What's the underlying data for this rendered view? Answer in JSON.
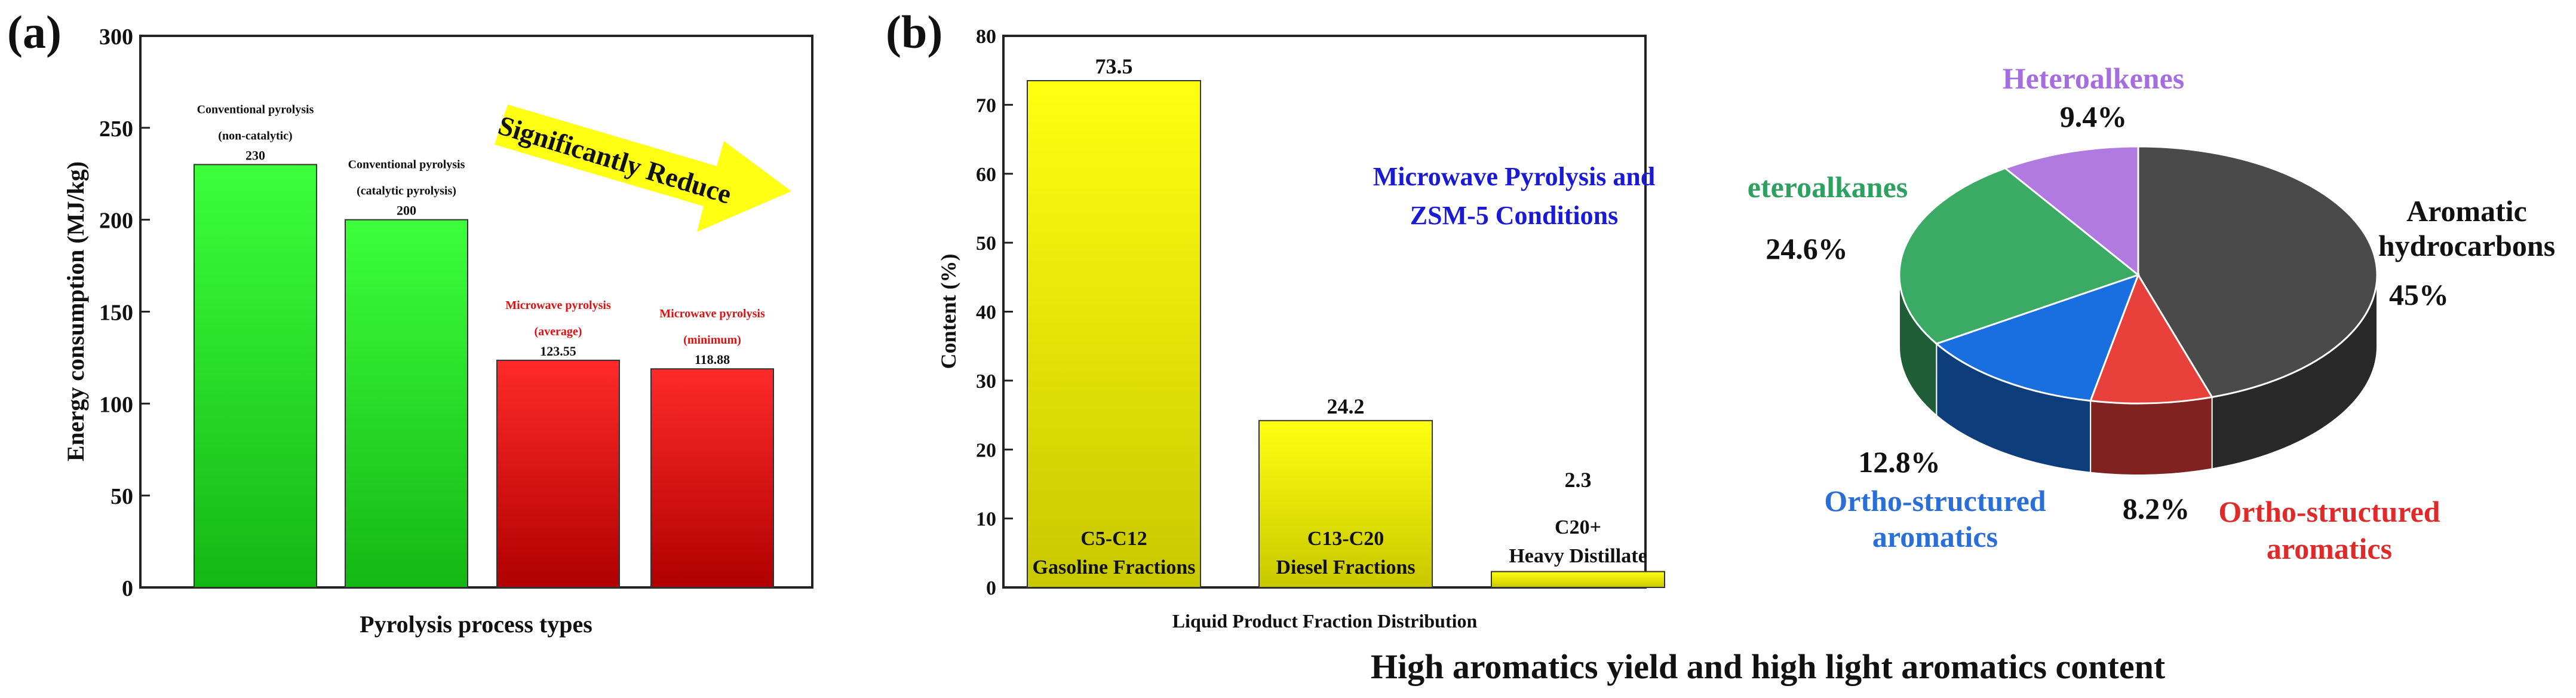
{
  "panels": {
    "a_label": "(a)",
    "b_label": "(b)"
  },
  "colors": {
    "green_bar": "#2ee82e",
    "red_bar": "#ee1111",
    "yellow_bar": "#f4f400",
    "arrow": "#ffff00",
    "title_blue": "#1a1ad4"
  },
  "annotations": {
    "arrow_text": "Significantly Reduce",
    "caption": "High aromatics yield and high light aromatics content"
  },
  "chart_data": [
    {
      "type": "bar",
      "title": "",
      "ylabel": "Energy consumption (MJ/kg)",
      "xlabel": "Pyrolysis process types",
      "ylim": [
        0,
        300
      ],
      "yticks": [
        "0",
        "50",
        "100",
        "150",
        "200",
        "250",
        "300"
      ],
      "bars": [
        {
          "value": 230,
          "value_label": "230",
          "label_lines": [
            "Conventional pyrolysis",
            "(non-catalytic)"
          ],
          "color": "green"
        },
        {
          "value": 200,
          "value_label": "200",
          "label_lines": [
            "Conventional pyrolysis",
            "(catalytic pyrolysis)"
          ],
          "color": "green"
        },
        {
          "value": 123.55,
          "value_label": "123.55",
          "label_lines": [
            "Microwave pyrolysis",
            "(average)"
          ],
          "color": "red"
        },
        {
          "value": 118.88,
          "value_label": "118.88",
          "label_lines": [
            "Microwave pyrolysis",
            "(minimum)"
          ],
          "color": "red"
        }
      ]
    },
    {
      "type": "bar",
      "title": "",
      "ylabel": "Content (%)",
      "xlabel": "Liquid Product Fraction Distribution",
      "ylim": [
        0,
        80
      ],
      "yticks": [
        "0",
        "10",
        "20",
        "30",
        "40",
        "50",
        "60",
        "70",
        "80"
      ],
      "annotation_lines": [
        "Microwave Pyrolysis and",
        "ZSM-5 Conditions"
      ],
      "bars": [
        {
          "value": 73.5,
          "value_label": "73.5",
          "label_lines": [
            "C5-C12",
            "Gasoline Fractions"
          ]
        },
        {
          "value": 24.2,
          "value_label": "24.2",
          "label_lines": [
            "C13-C20",
            "Diesel Fractions"
          ]
        },
        {
          "value": 2.3,
          "value_label": "2.3",
          "label_lines": [
            "C20+",
            "Heavy Distillate"
          ]
        }
      ]
    },
    {
      "type": "pie",
      "title": "",
      "slices": [
        {
          "name_lines": [
            "Aromatic",
            "hydrocarbons"
          ],
          "percent_label": "45%",
          "value": 45,
          "color": "#4a4a4a",
          "name_color": "#111111"
        },
        {
          "name_lines": [
            "Ortho-structured",
            "aromatics"
          ],
          "percent_label": "8.2%",
          "value": 8.2,
          "color": "#e8403a",
          "name_color": "#e02a2a"
        },
        {
          "name_lines": [
            "Ortho-structured",
            "aromatics"
          ],
          "percent_label": "12.8%",
          "value": 12.8,
          "color": "#1a6fe0",
          "name_color": "#2a6fd8"
        },
        {
          "name_lines": [
            "eteroalkanes"
          ],
          "percent_label": "24.6%",
          "value": 24.6,
          "color": "#3aaa64",
          "name_color": "#2ea060"
        },
        {
          "name_lines": [
            "Heteroalkenes"
          ],
          "percent_label": "9.4%",
          "value": 9.4,
          "color": "#b07ae0",
          "name_color": "#a46ee0"
        }
      ]
    }
  ]
}
